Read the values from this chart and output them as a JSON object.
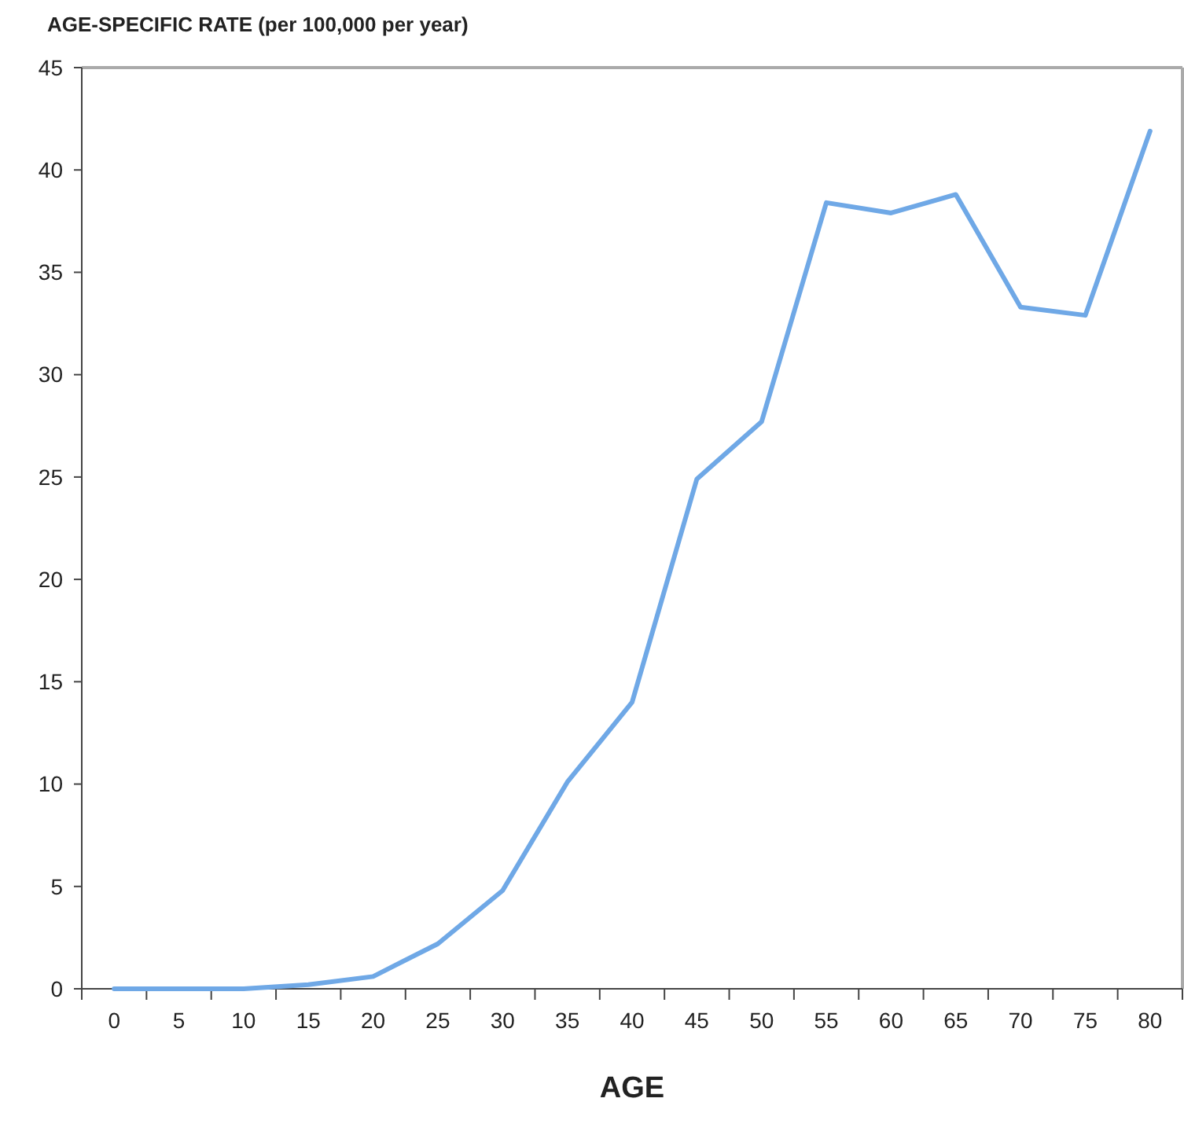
{
  "chart_data": {
    "type": "line",
    "title": "AGE-SPECIFIC RATE (per 100,000 per year)",
    "xlabel": "AGE",
    "categories": [
      "0",
      "5",
      "10",
      "15",
      "20",
      "25",
      "30",
      "35",
      "40",
      "45",
      "50",
      "55",
      "60",
      "65",
      "70",
      "75",
      "80"
    ],
    "series": [
      {
        "color": "#6fa8e6",
        "values": [
          0,
          0,
          0,
          0.2,
          0.6,
          2.2,
          4.8,
          10.1,
          14,
          24.9,
          27.7,
          38.4,
          37.9,
          38.8,
          33.3,
          32.9,
          41.9
        ]
      }
    ],
    "ylim": [
      0,
      45
    ],
    "yticks": [
      0,
      5,
      10,
      15,
      20,
      25,
      30,
      35,
      40,
      45
    ],
    "grid": false,
    "marker": "none",
    "line_style": "solid"
  }
}
